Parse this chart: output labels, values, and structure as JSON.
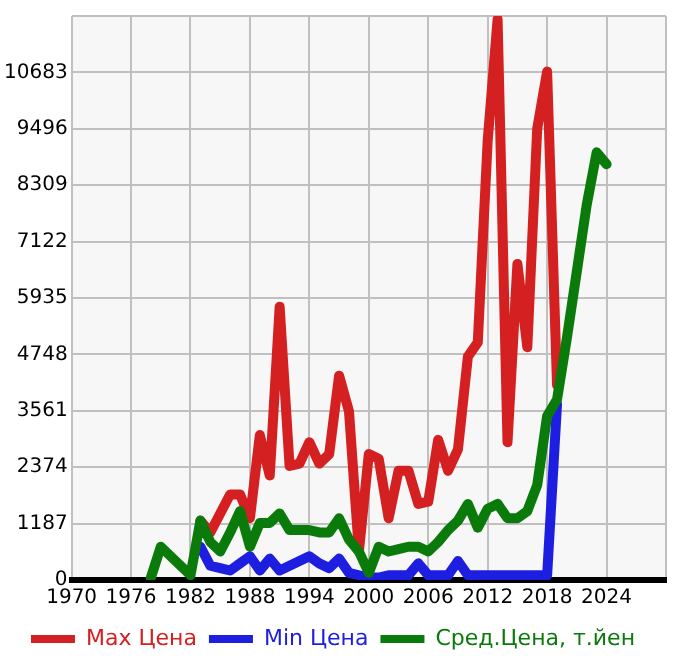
{
  "chart_data": {
    "type": "line",
    "xlim": [
      1970,
      2030
    ],
    "xticks": [
      1970,
      1976,
      1982,
      1988,
      1994,
      2000,
      2006,
      2012,
      2018,
      2024,
      {
        "value": 2030,
        "label": null
      }
    ],
    "ylim": [
      0,
      11870
    ],
    "yticks": [
      0,
      1187,
      2374,
      3561,
      4748,
      5935,
      7122,
      8309,
      9496,
      10683,
      {
        "value": 11870,
        "label": null
      }
    ],
    "grid": true,
    "legend": "bottom",
    "marker": "none",
    "line_style": "solid",
    "series": [
      {
        "name": "Max Цена",
        "color": "#d42020",
        "x": [
          1983,
          1984,
          1985,
          1986,
          1987,
          1988,
          1989,
          1990,
          1991,
          1992,
          1993,
          1994,
          1995,
          1996,
          1997,
          1998,
          1999,
          2000,
          2001,
          2002,
          2003,
          2004,
          2005,
          2006,
          2007,
          2008,
          2009,
          2010,
          2011,
          2012,
          2013,
          2014,
          2015,
          2016,
          2017,
          2018,
          2019
        ],
        "values": [
          1250,
          1000,
          1400,
          1800,
          1800,
          1300,
          3050,
          2200,
          5750,
          2400,
          2450,
          2900,
          2450,
          2650,
          4300,
          3550,
          600,
          2650,
          2550,
          1300,
          2300,
          2300,
          1600,
          1650,
          2950,
          2300,
          2750,
          4700,
          5000,
          9250,
          11800,
          2900,
          6650,
          4900,
          9500,
          10700,
          4100
        ]
      },
      {
        "name": "Min Цена",
        "color": "#1e1ee0",
        "x": [
          1983,
          1984,
          1985,
          1986,
          1987,
          1988,
          1989,
          1990,
          1991,
          1992,
          1993,
          1994,
          1995,
          1996,
          1997,
          1998,
          1999,
          2000,
          2001,
          2002,
          2003,
          2004,
          2005,
          2006,
          2007,
          2008,
          2009,
          2010,
          2011,
          2012,
          2013,
          2014,
          2015,
          2016,
          2017,
          2018,
          2019
        ],
        "values": [
          700,
          300,
          250,
          200,
          350,
          500,
          200,
          450,
          200,
          300,
          400,
          500,
          350,
          250,
          450,
          150,
          100,
          50,
          50,
          100,
          100,
          100,
          350,
          100,
          100,
          100,
          400,
          100,
          100,
          100,
          100,
          100,
          100,
          100,
          100,
          100,
          3700
        ]
      },
      {
        "name": "Сред.Цена, т.йен",
        "color": "#0a7a0a",
        "x": [
          1978,
          1979,
          1980,
          1981,
          1982,
          1983,
          1984,
          1985,
          1986,
          1987,
          1988,
          1989,
          1990,
          1991,
          1992,
          1993,
          1994,
          1995,
          1996,
          1997,
          1998,
          1999,
          2000,
          2001,
          2002,
          2003,
          2004,
          2005,
          2006,
          2007,
          2008,
          2009,
          2010,
          2011,
          2012,
          2013,
          2014,
          2015,
          2016,
          2017,
          2018,
          2019,
          2020,
          2021,
          2022,
          2023,
          2024
        ],
        "values": [
          50,
          700,
          500,
          300,
          100,
          1250,
          800,
          600,
          1000,
          1450,
          700,
          1200,
          1200,
          1400,
          1050,
          1050,
          1050,
          1000,
          1000,
          1300,
          850,
          600,
          150,
          700,
          600,
          650,
          700,
          700,
          600,
          800,
          1050,
          1250,
          1600,
          1100,
          1500,
          1600,
          1300,
          1300,
          1450,
          2000,
          3450,
          3800,
          5100,
          6500,
          7900,
          9000,
          8750
        ]
      }
    ]
  }
}
